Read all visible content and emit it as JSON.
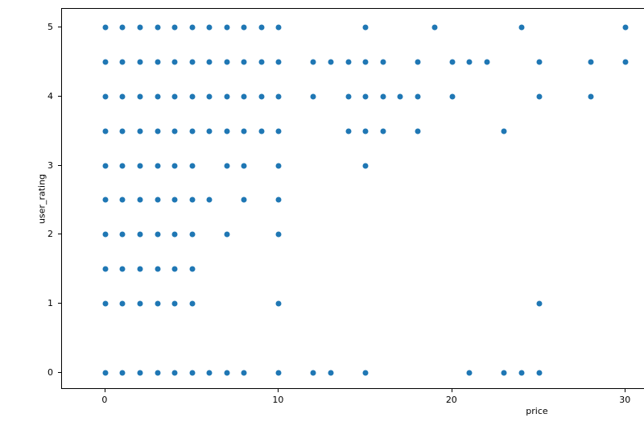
{
  "figure": {
    "background": "#ffffff",
    "text_color": "#000000",
    "spine_color": "#000000"
  },
  "chart_data": {
    "type": "scatter",
    "title": "",
    "xlabel": "price",
    "ylabel": "user_rating",
    "x_ticks": [
      "0",
      "10",
      "20",
      "30"
    ],
    "x_tick_values": [
      0,
      10,
      20,
      30
    ],
    "y_ticks": [
      "0",
      "1",
      "2",
      "3",
      "4",
      "5"
    ],
    "y_tick_values": [
      0,
      1,
      2,
      3,
      4,
      5
    ],
    "xlim": [
      -2.5,
      31.1
    ],
    "ylim": [
      -0.25,
      5.27
    ],
    "grid": false,
    "legend": false,
    "marker_color": "#1f77b4",
    "marker_diameter_px": 7,
    "series": [
      {
        "name": "user_rating 5.0",
        "y": 5,
        "x": [
          0,
          1,
          2,
          3,
          4,
          5,
          6,
          7,
          8,
          9,
          10,
          15,
          19,
          24,
          30
        ]
      },
      {
        "name": "user_rating 4.5",
        "y": 4.5,
        "x": [
          0,
          1,
          2,
          3,
          4,
          5,
          6,
          7,
          8,
          9,
          10,
          12,
          13,
          14,
          15,
          16,
          18,
          20,
          21,
          22,
          25,
          28,
          30
        ]
      },
      {
        "name": "user_rating 4.0",
        "y": 4,
        "x": [
          0,
          1,
          2,
          3,
          4,
          5,
          6,
          7,
          8,
          9,
          10,
          12,
          14,
          15,
          16,
          17,
          18,
          20,
          25,
          28
        ]
      },
      {
        "name": "user_rating 3.5",
        "y": 3.5,
        "x": [
          0,
          1,
          2,
          3,
          4,
          5,
          6,
          7,
          8,
          9,
          10,
          14,
          15,
          16,
          18,
          23
        ]
      },
      {
        "name": "user_rating 3.0",
        "y": 3,
        "x": [
          0,
          1,
          2,
          3,
          4,
          5,
          7,
          8,
          10,
          15
        ]
      },
      {
        "name": "user_rating 2.5",
        "y": 2.5,
        "x": [
          0,
          1,
          2,
          3,
          4,
          5,
          6,
          8,
          10
        ]
      },
      {
        "name": "user_rating 2.0",
        "y": 2,
        "x": [
          0,
          1,
          2,
          3,
          4,
          5,
          7,
          10
        ]
      },
      {
        "name": "user_rating 1.5",
        "y": 1.5,
        "x": [
          0,
          1,
          2,
          3,
          4,
          5
        ]
      },
      {
        "name": "user_rating 1.0",
        "y": 1,
        "x": [
          0,
          1,
          2,
          3,
          4,
          5,
          10,
          25
        ]
      },
      {
        "name": "user_rating 0.0",
        "y": 0,
        "x": [
          0,
          1,
          2,
          3,
          4,
          5,
          6,
          7,
          8,
          10,
          12,
          13,
          15,
          21,
          23,
          24,
          25
        ]
      }
    ]
  }
}
